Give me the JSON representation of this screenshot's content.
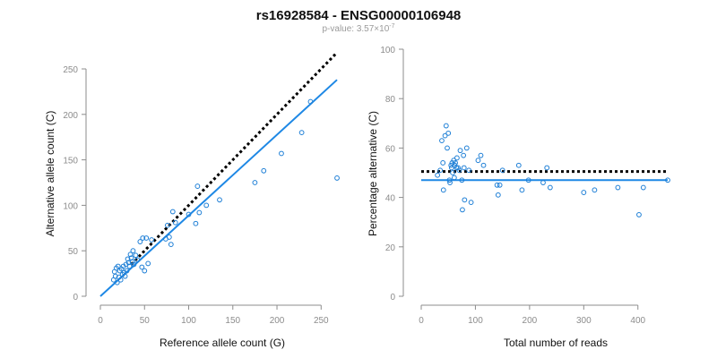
{
  "title": "rs16928584 - ENSG00000106948",
  "subtitle_prefix": "p-value: 3.57×10",
  "subtitle_exponent": "-7",
  "colors": {
    "points": "#1e7fd6",
    "fit_line": "#1e88e5",
    "reference_line": "#000000"
  },
  "chart_data": [
    {
      "type": "scatter",
      "xlabel": "Reference allele count (G)",
      "ylabel": "Alternative allele count (C)",
      "xlim": [
        0,
        270
      ],
      "ylim": [
        0,
        250
      ],
      "xticks": [
        0,
        50,
        100,
        150,
        200,
        250
      ],
      "yticks": [
        0,
        50,
        100,
        150,
        200,
        250
      ],
      "grid": false,
      "points": [
        [
          15,
          18
        ],
        [
          16,
          27
        ],
        [
          17,
          22
        ],
        [
          18,
          31
        ],
        [
          19,
          15
        ],
        [
          20,
          33
        ],
        [
          21,
          21
        ],
        [
          22,
          28
        ],
        [
          23,
          18
        ],
        [
          24,
          30
        ],
        [
          25,
          24
        ],
        [
          26,
          33
        ],
        [
          27,
          26
        ],
        [
          28,
          22
        ],
        [
          29,
          35
        ],
        [
          30,
          28
        ],
        [
          31,
          41
        ],
        [
          32,
          37
        ],
        [
          33,
          33
        ],
        [
          34,
          46
        ],
        [
          35,
          42
        ],
        [
          36,
          38
        ],
        [
          37,
          50
        ],
        [
          38,
          35
        ],
        [
          40,
          45
        ],
        [
          42,
          40
        ],
        [
          45,
          60
        ],
        [
          47,
          32
        ],
        [
          48,
          64
        ],
        [
          50,
          28
        ],
        [
          52,
          64
        ],
        [
          54,
          36
        ],
        [
          58,
          62
        ],
        [
          74,
          63
        ],
        [
          76,
          78
        ],
        [
          78,
          65
        ],
        [
          80,
          57
        ],
        [
          82,
          93
        ],
        [
          85,
          81
        ],
        [
          100,
          90
        ],
        [
          108,
          80
        ],
        [
          110,
          121
        ],
        [
          112,
          92
        ],
        [
          120,
          100
        ],
        [
          135,
          106
        ],
        [
          175,
          125
        ],
        [
          185,
          138
        ],
        [
          205,
          157
        ],
        [
          228,
          180
        ],
        [
          238,
          214
        ],
        [
          268,
          130
        ]
      ],
      "fit_line": {
        "x": [
          0,
          268
        ],
        "y": [
          0,
          238
        ]
      },
      "reference_line": {
        "x": [
          35,
          268
        ],
        "y": [
          35,
          268
        ],
        "style": "dotted"
      }
    },
    {
      "type": "scatter",
      "xlabel": "Total number of reads",
      "ylabel": "Percentage alternative (C)",
      "xlim": [
        0,
        455
      ],
      "ylim": [
        0,
        100
      ],
      "xticks": [
        0,
        100,
        200,
        300,
        400
      ],
      "yticks": [
        0,
        20,
        40,
        60,
        80,
        100
      ],
      "grid": false,
      "points": [
        [
          30,
          49
        ],
        [
          35,
          51
        ],
        [
          38,
          63
        ],
        [
          40,
          54
        ],
        [
          41,
          43
        ],
        [
          44,
          65
        ],
        [
          46,
          69
        ],
        [
          48,
          60
        ],
        [
          50,
          66
        ],
        [
          52,
          47
        ],
        [
          53,
          46
        ],
        [
          55,
          53
        ],
        [
          56,
          52
        ],
        [
          57,
          54
        ],
        [
          58,
          50
        ],
        [
          60,
          55
        ],
        [
          61,
          48
        ],
        [
          62,
          53
        ],
        [
          63,
          54
        ],
        [
          65,
          52
        ],
        [
          66,
          56
        ],
        [
          68,
          52
        ],
        [
          70,
          51
        ],
        [
          72,
          59
        ],
        [
          75,
          47
        ],
        [
          76,
          35
        ],
        [
          78,
          57
        ],
        [
          79,
          52
        ],
        [
          80,
          39
        ],
        [
          84,
          60
        ],
        [
          88,
          51
        ],
        [
          92,
          38
        ],
        [
          105,
          55
        ],
        [
          110,
          57
        ],
        [
          115,
          53
        ],
        [
          140,
          45
        ],
        [
          142,
          41
        ],
        [
          145,
          45
        ],
        [
          150,
          51
        ],
        [
          180,
          53
        ],
        [
          186,
          43
        ],
        [
          198,
          47
        ],
        [
          225,
          46
        ],
        [
          232,
          52
        ],
        [
          238,
          44
        ],
        [
          300,
          42
        ],
        [
          320,
          43
        ],
        [
          363,
          44
        ],
        [
          402,
          33
        ],
        [
          410,
          44
        ],
        [
          455,
          47
        ]
      ],
      "fit_line": {
        "x": [
          0,
          455
        ],
        "y": [
          47,
          47
        ]
      },
      "reference_line": {
        "x": [
          0,
          455
        ],
        "y": [
          50.5,
          50.5
        ],
        "style": "dotted"
      }
    }
  ]
}
